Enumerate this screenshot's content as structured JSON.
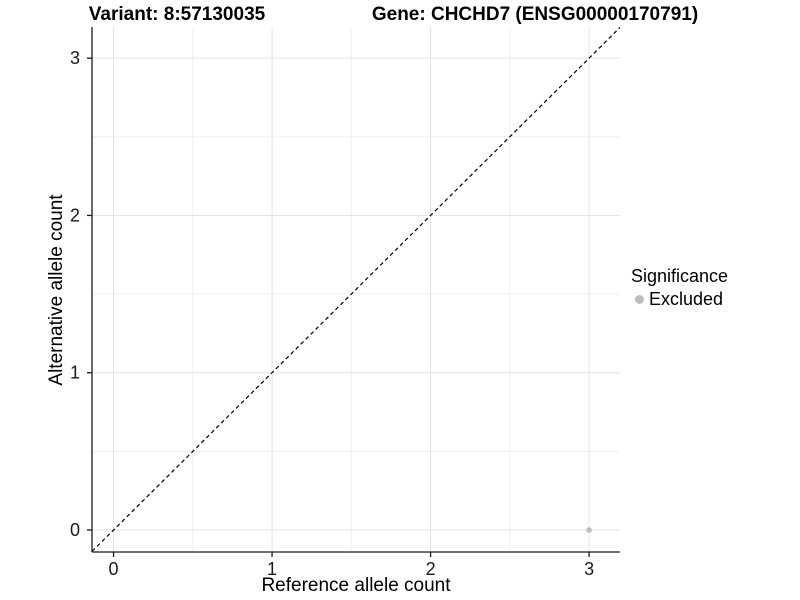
{
  "titles": {
    "left": "Variant: 8:57130035",
    "right": "Gene: CHCHD7 (ENSG00000170791)"
  },
  "legend": {
    "title": "Significance",
    "items": [
      {
        "label": "Excluded",
        "color": "#bdbdbd"
      }
    ]
  },
  "chart_data": {
    "type": "scatter",
    "title": "Variant: 8:57130035 — Gene: CHCHD7 (ENSG00000170791)",
    "xlabel": "Reference allele count",
    "ylabel": "Alternative allele count",
    "x_ticks": [
      0,
      1,
      2,
      3
    ],
    "y_ticks": [
      0,
      1,
      2,
      3
    ],
    "xlim": [
      -0.136,
      3.195
    ],
    "ylim": [
      -0.14,
      3.198
    ],
    "grid": {
      "major_color": "#e3e3e3",
      "minor_color": "#f0f0f0",
      "x_minor": [
        0.5,
        1.5,
        2.5
      ],
      "y_minor": [
        0.5,
        1.5,
        2.5
      ]
    },
    "reference_line": {
      "type": "identity",
      "style": "dashed",
      "color": "#000000"
    },
    "series": [
      {
        "name": "Excluded",
        "color": "#bdbdbd",
        "points": [
          {
            "x": 3,
            "y": 0
          }
        ]
      }
    ],
    "legend_position": "right",
    "axis_color": "#1a1a1a",
    "tick_label_color": "#1a1a1a"
  }
}
